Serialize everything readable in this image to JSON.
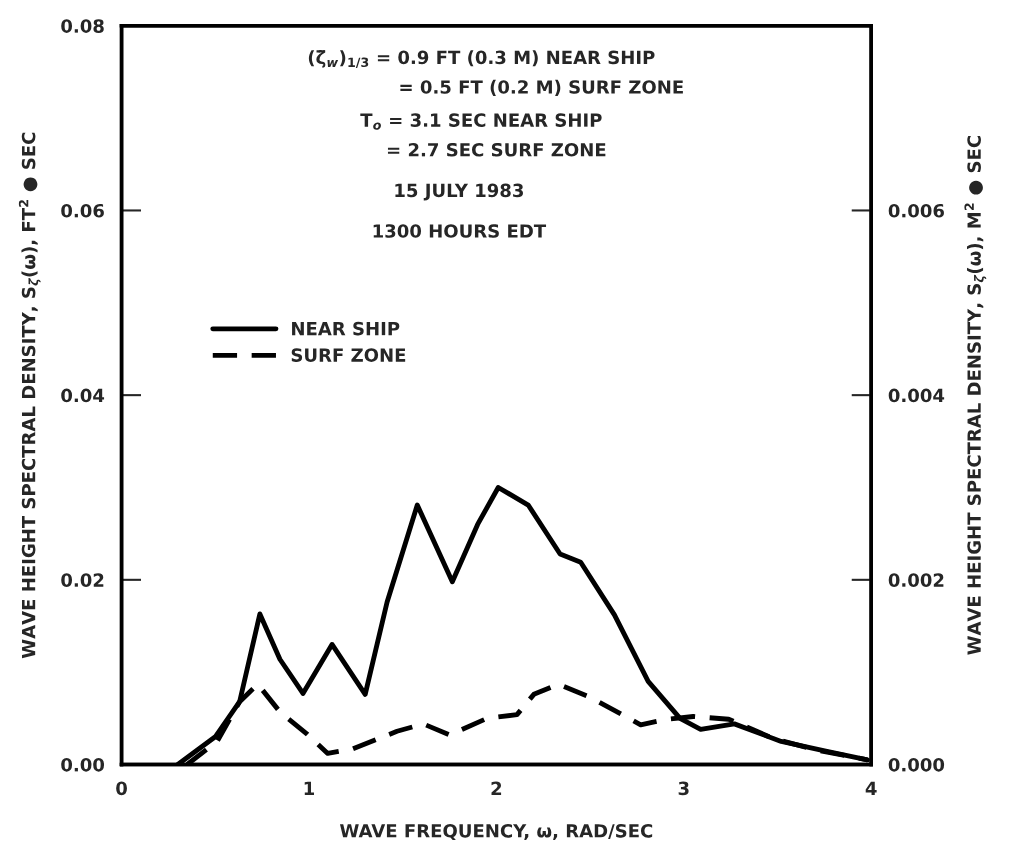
{
  "chart_data": {
    "type": "line",
    "xlabel": "WAVE FREQUENCY, ω, RAD/SEC",
    "ylabel": "WAVE HEIGHT SPECTRAL DENSITY, S$_{ζ}$(ω), FT$^{2}$ ● SEC",
    "y2label": "WAVE HEIGHT SPECTRAL DENSITY, S$_{ζ}$(ω), M$^{2}$ ● SEC",
    "annotations": [
      "(ζ̃$_{w}$)$_{1/3}$ = 0.9 FT (0.3 M) NEAR SHIP",
      "= 0.5 FT (0.2 M) SURF ZONE",
      "T$_{o}$ = 3.1 SEC NEAR SHIP",
      "= 2.7 SEC SURF ZONE",
      "15 JULY 1983",
      "1300 HOURS EDT"
    ],
    "xlim": [
      0,
      4
    ],
    "xticks": [
      0,
      1,
      2,
      3,
      4
    ],
    "ylim": [
      0,
      0.08
    ],
    "yticks": [
      {
        "value": 0,
        "label": "0.00"
      },
      {
        "value": 0.02,
        "label": "0.02"
      },
      {
        "value": 0.04,
        "label": "0.04"
      },
      {
        "value": 0.06,
        "label": "0.06"
      },
      {
        "value": 0.08,
        "label": "0.08"
      }
    ],
    "y2lim": [
      0,
      0.008
    ],
    "y2ticks": [
      {
        "value": 0,
        "label": "0.000"
      },
      {
        "value": 0.002,
        "label": "0.002"
      },
      {
        "value": 0.004,
        "label": "0.004"
      },
      {
        "value": 0.006,
        "label": "0.006"
      }
    ],
    "grid": false,
    "legend": "center left",
    "series": [
      {
        "name": "NEAR SHIP",
        "color": "#000000",
        "line_style": "solid",
        "x": [
          0.3,
          0.5,
          0.63,
          0.738,
          0.845,
          0.968,
          1.123,
          1.3,
          1.417,
          1.578,
          1.765,
          1.9,
          2.01,
          2.17,
          2.34,
          2.45,
          2.63,
          2.81,
          2.98,
          3.09,
          3.27,
          3.52,
          3.77,
          3.98
        ],
        "values": [
          0,
          0.003,
          0.0068,
          0.0163,
          0.0114,
          0.0077,
          0.013,
          0.0076,
          0.0176,
          0.0281,
          0.0198,
          0.026,
          0.03,
          0.0281,
          0.0228,
          0.0219,
          0.0162,
          0.009,
          0.005,
          0.0038,
          0.0044,
          0.0025,
          0.0014,
          0.0005
        ]
      },
      {
        "name": "SURF ZONE",
        "color": "#000000",
        "line_style": "dashed",
        "x": [
          0.35,
          0.51,
          0.63,
          0.727,
          0.845,
          0.99,
          1.1,
          1.235,
          1.47,
          1.61,
          1.75,
          1.95,
          2.11,
          2.2,
          2.33,
          2.5,
          2.77,
          2.91,
          3.05,
          3.24,
          3.48,
          3.7,
          3.98
        ],
        "values": [
          0,
          0.0025,
          0.0068,
          0.0087,
          0.0057,
          0.0033,
          0.0012,
          0.0017,
          0.0036,
          0.0044,
          0.0032,
          0.005,
          0.0054,
          0.0076,
          0.0087,
          0.0073,
          0.0043,
          0.0049,
          0.0052,
          0.0049,
          0.0028,
          0.0016,
          0.0005
        ]
      }
    ]
  }
}
